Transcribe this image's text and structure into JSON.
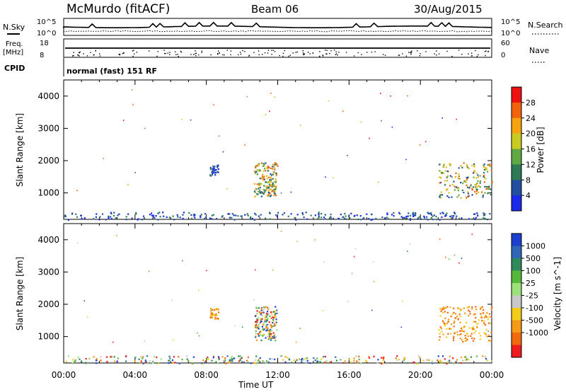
{
  "header": {
    "station": "McMurdo (fitACF)",
    "beam": "Beam 06",
    "date": "30/Aug/2015"
  },
  "top_strips": {
    "nsky_label": "N.Sky",
    "nsearch_label": "N.Search",
    "nsky_ticks": [
      "10^5",
      "10^0"
    ],
    "nsearch_ticks": [
      "10^5",
      "10^0"
    ],
    "freq_label": "Freq.",
    "freq_unit": "[MHz]",
    "freq_ticks": [
      "18",
      "8"
    ],
    "nave_label": "Nave",
    "nave_ticks": [
      "60",
      "0"
    ],
    "cpid_label": "CPID",
    "cpid_value": "normal (fast) 151 RF"
  },
  "chart_data": [
    {
      "type": "heatmap",
      "title": "",
      "ylabel": "Slant Range [km]",
      "xlabel": "Time UT",
      "yticks": [
        "4000",
        "3000",
        "2000",
        "1000"
      ],
      "colorbar_label": "Power [dB]",
      "colorbar_ticks": [
        "28",
        "24",
        "20",
        "16",
        "12",
        "8",
        "4"
      ],
      "colorbar_colors": [
        "#ee1111",
        "#f3620d",
        "#f5a30f",
        "#c8cc22",
        "#5fa843",
        "#2e7a55",
        "#234fa3",
        "#1c29e8"
      ],
      "features": [
        {
          "time_range": [
            "08:10",
            "08:40"
          ],
          "range_km": [
            1550,
            1900
          ],
          "level": "low"
        },
        {
          "time_range": [
            "10:40",
            "11:55"
          ],
          "range_km": [
            900,
            1950
          ],
          "level": "high"
        },
        {
          "time_range": [
            "21:00",
            "00:00"
          ],
          "range_km": [
            850,
            1950
          ],
          "level": "high"
        },
        {
          "time_range": [
            "00:00",
            "24:00"
          ],
          "range_km": [
            180,
            420
          ],
          "level": "low"
        }
      ]
    },
    {
      "type": "heatmap",
      "title": "",
      "ylabel": "Slant Range [km]",
      "xlabel": "Time UT",
      "yticks": [
        "4000",
        "3000",
        "2000",
        "1000"
      ],
      "colorbar_label": "Velocity [m s^-1]",
      "colorbar_ticks": [
        "1000",
        "500",
        "100",
        "25",
        "-25",
        "-100",
        "-500",
        "-1000"
      ],
      "colorbar_colors": [
        "#1d3fd0",
        "#2f66b8",
        "#2e8a5a",
        "#55b83a",
        "#9be07a",
        "#c8c8c8",
        "#f3cc1a",
        "#f59a16",
        "#f26a10",
        "#ee1c1c"
      ],
      "features": [
        {
          "time_range": [
            "08:10",
            "08:40"
          ],
          "range_km": [
            1550,
            1900
          ],
          "level": "negative"
        },
        {
          "time_range": [
            "10:40",
            "11:55"
          ],
          "range_km": [
            900,
            1950
          ],
          "level": "mixed"
        },
        {
          "time_range": [
            "21:00",
            "00:00"
          ],
          "range_km": [
            850,
            1950
          ],
          "level": "negative"
        },
        {
          "time_range": [
            "00:00",
            "24:00"
          ],
          "range_km": [
            180,
            420
          ],
          "level": "mixed"
        }
      ]
    }
  ],
  "x_axis": {
    "ticks": [
      "00:00",
      "04:00",
      "08:00",
      "12:00",
      "16:00",
      "20:00",
      "00:00"
    ],
    "label": "Time UT"
  }
}
